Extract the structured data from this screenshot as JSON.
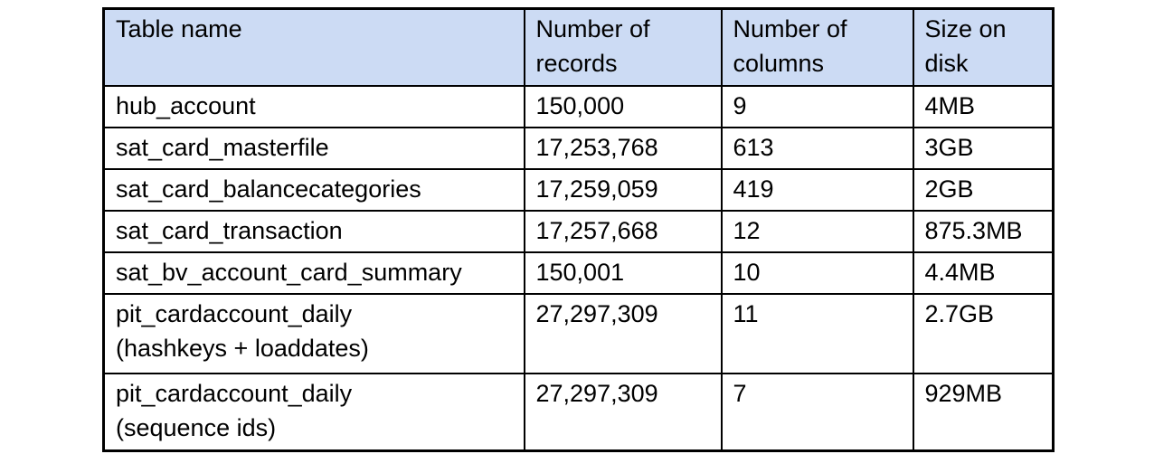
{
  "colors": {
    "header_background": "#ccdbf4",
    "border": "#000000",
    "text": "#000000",
    "page_background": "#ffffff"
  },
  "table": {
    "headers": [
      "Table name",
      "Number of\nrecords",
      "Number of\ncolumns",
      "Size on\ndisk"
    ],
    "rows": [
      {
        "cells": [
          "hub_account",
          "150,000",
          "9",
          "4MB"
        ]
      },
      {
        "cells": [
          "sat_card_masterfile",
          "17,253,768",
          "613",
          "3GB"
        ]
      },
      {
        "cells": [
          "sat_card_balancecategories",
          "17,259,059",
          "419",
          "2GB"
        ]
      },
      {
        "cells": [
          "sat_card_transaction",
          "17,257,668",
          "12",
          "875.3MB"
        ]
      },
      {
        "cells": [
          "sat_bv_account_card_summary",
          "150,001",
          "10",
          "4.4MB"
        ]
      },
      {
        "cells": [
          "pit_cardaccount_daily\n(hashkeys + loaddates)",
          "27,297,309",
          "11",
          "2.7GB"
        ]
      },
      {
        "cells": [
          "pit_cardaccount_daily\n(sequence ids)",
          "27,297,309",
          "7",
          "929MB"
        ]
      }
    ]
  }
}
